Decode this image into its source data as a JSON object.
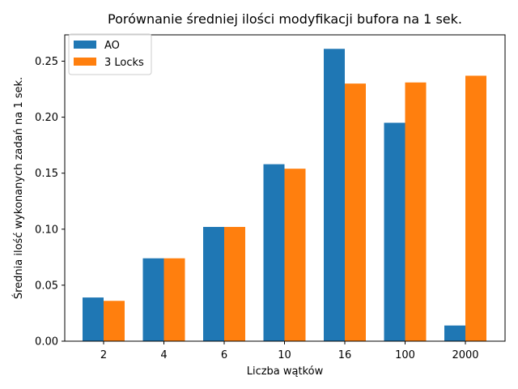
{
  "chart_data": {
    "type": "bar",
    "title": "Porównanie średniej ilości modyfikacji bufora na 1 sek.",
    "xlabel": "Liczba wątków",
    "ylabel": "Średnia ilość wykonanych zadań na 1 sek.",
    "categories": [
      "2",
      "4",
      "6",
      "10",
      "16",
      "100",
      "2000"
    ],
    "series": [
      {
        "name": "AO",
        "color": "#1f77b4",
        "values": [
          0.039,
          0.074,
          0.102,
          0.158,
          0.261,
          0.195,
          0.014
        ]
      },
      {
        "name": "3 Locks",
        "color": "#ff7f0e",
        "values": [
          0.036,
          0.074,
          0.102,
          0.154,
          0.23,
          0.231,
          0.237
        ]
      }
    ],
    "ylim": [
      0,
      0.2735
    ],
    "yticks": [
      "0.00",
      "0.05",
      "0.10",
      "0.15",
      "0.20",
      "0.25"
    ],
    "grid": false,
    "legend_position": "top-left"
  }
}
